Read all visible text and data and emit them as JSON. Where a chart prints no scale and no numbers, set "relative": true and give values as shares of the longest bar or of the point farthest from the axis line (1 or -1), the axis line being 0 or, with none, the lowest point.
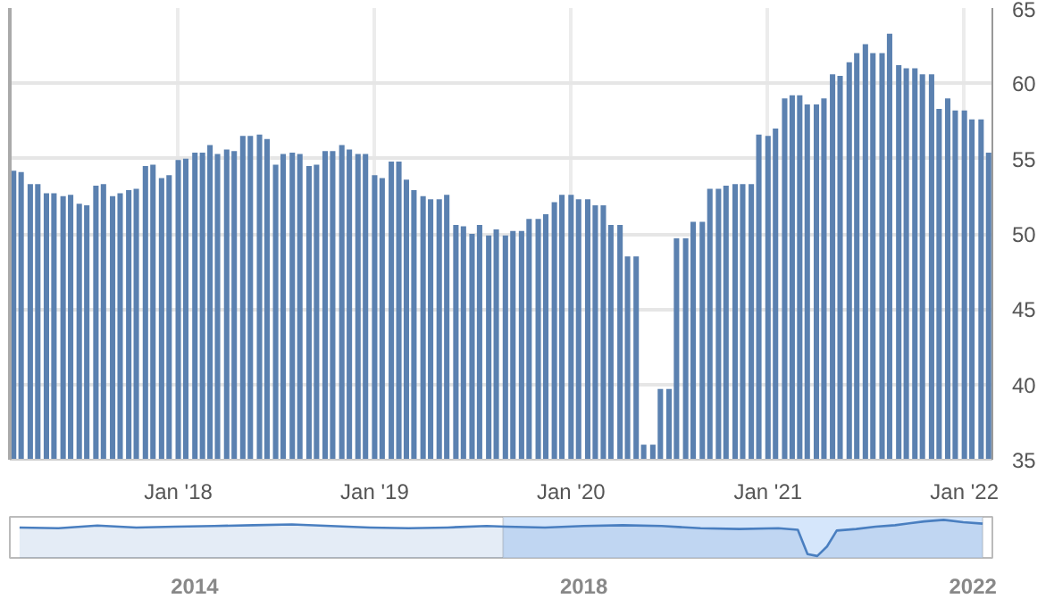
{
  "chart_data": [
    {
      "type": "bar",
      "color": "#5b81b0",
      "x": [
        "2017-03-01",
        "2017-03-15",
        "2017-04-01",
        "2017-04-15",
        "2017-05-01",
        "2017-05-15",
        "2017-06-01",
        "2017-06-15",
        "2017-07-01",
        "2017-07-15",
        "2017-08-01",
        "2017-08-15",
        "2017-09-01",
        "2017-09-15",
        "2017-10-01",
        "2017-10-15",
        "2017-11-01",
        "2017-11-15",
        "2017-12-01",
        "2017-12-15",
        "2018-01-01",
        "2018-01-15",
        "2018-02-01",
        "2018-02-15",
        "2018-03-01",
        "2018-03-15",
        "2018-04-01",
        "2018-04-15",
        "2018-05-01",
        "2018-05-15",
        "2018-06-01",
        "2018-06-15",
        "2018-07-01",
        "2018-07-15",
        "2018-08-01",
        "2018-08-15",
        "2018-09-01",
        "2018-09-15",
        "2018-10-01",
        "2018-10-15",
        "2018-11-01",
        "2018-11-15",
        "2018-12-01",
        "2018-12-15",
        "2019-01-01",
        "2019-01-15",
        "2019-02-01",
        "2019-02-15",
        "2019-03-01",
        "2019-03-15",
        "2019-04-01",
        "2019-04-15",
        "2019-05-01",
        "2019-05-15",
        "2019-06-01",
        "2019-06-15",
        "2019-07-01",
        "2019-07-15",
        "2019-08-01",
        "2019-08-15",
        "2019-09-01",
        "2019-09-15",
        "2019-10-01",
        "2019-10-15",
        "2019-11-01",
        "2019-11-15",
        "2019-12-01",
        "2019-12-15",
        "2020-01-01",
        "2020-01-15",
        "2020-02-01",
        "2020-02-15",
        "2020-03-01",
        "2020-03-15",
        "2020-04-01",
        "2020-04-15",
        "2020-05-01",
        "2020-05-15",
        "2020-06-01",
        "2020-06-15",
        "2020-07-01",
        "2020-07-15",
        "2020-08-01",
        "2020-08-15",
        "2020-09-01",
        "2020-09-15",
        "2020-10-01",
        "2020-10-15",
        "2020-11-01",
        "2020-11-15",
        "2020-12-01",
        "2020-12-15",
        "2021-01-01",
        "2021-01-15",
        "2021-02-01",
        "2021-02-15",
        "2021-03-01",
        "2021-03-15",
        "2021-04-01",
        "2021-04-15",
        "2021-05-01",
        "2021-05-15",
        "2021-06-01",
        "2021-06-15",
        "2021-07-01",
        "2021-07-15",
        "2021-08-01",
        "2021-08-15",
        "2021-09-01",
        "2021-09-15",
        "2021-10-01",
        "2021-10-15",
        "2021-11-01",
        "2021-11-15",
        "2021-12-01",
        "2021-12-15",
        "2022-01-01",
        "2022-01-15",
        "2022-02-01",
        "2022-02-15"
      ],
      "values": [
        54.2,
        54.1,
        53.3,
        53.3,
        52.7,
        52.7,
        52.5,
        52.6,
        52.0,
        51.9,
        53.2,
        53.3,
        52.5,
        52.7,
        52.9,
        53.0,
        54.5,
        54.6,
        53.7,
        53.9,
        54.9,
        55.0,
        55.4,
        55.4,
        55.9,
        55.3,
        55.6,
        55.5,
        56.5,
        56.5,
        56.6,
        56.3,
        54.6,
        55.3,
        55.4,
        55.3,
        54.5,
        54.6,
        55.5,
        55.5,
        55.9,
        55.6,
        55.3,
        55.3,
        53.9,
        53.7,
        54.8,
        54.8,
        53.6,
        52.9,
        52.5,
        52.3,
        52.3,
        52.6,
        50.6,
        50.5,
        50.0,
        50.6,
        49.9,
        50.3,
        49.9,
        50.2,
        50.2,
        51.0,
        51.0,
        51.3,
        52.1,
        52.6,
        52.6,
        52.3,
        52.3,
        51.9,
        51.9,
        50.6,
        50.6,
        48.5,
        48.5,
        36.0,
        36.0,
        39.7,
        39.7,
        49.7,
        49.7,
        50.8,
        50.8,
        53.0,
        53.0,
        53.2,
        53.3,
        53.3,
        53.3,
        56.6,
        56.5,
        57.0,
        59.0,
        59.2,
        59.2,
        58.6,
        58.6,
        59.0,
        60.6,
        60.5,
        61.4,
        62.0,
        62.6,
        62.0,
        62.0,
        63.3,
        61.2,
        61.0,
        61.0,
        60.6,
        60.6,
        58.3,
        59.0,
        58.2,
        58.2,
        57.6,
        57.6,
        55.4
      ],
      "xlim": [
        "2017-02-22",
        "2022-02-22"
      ],
      "xticks": [
        {
          "value": "2018-01-01",
          "label": "Jan '18"
        },
        {
          "value": "2019-01-01",
          "label": "Jan '19"
        },
        {
          "value": "2020-01-01",
          "label": "Jan '20"
        },
        {
          "value": "2021-01-01",
          "label": "Jan '21"
        },
        {
          "value": "2022-01-01",
          "label": "Jan '22"
        }
      ],
      "ylim": [
        35,
        65
      ],
      "yticks": [
        35,
        40,
        45,
        50,
        55,
        60,
        65
      ],
      "grid": true
    },
    {
      "type": "area",
      "relative": true,
      "color": "#4a7fc0",
      "x": [
        2012.2,
        2012.6,
        2013.0,
        2013.4,
        2013.8,
        2014.2,
        2014.6,
        2015.0,
        2015.4,
        2015.8,
        2016.2,
        2016.6,
        2017.0,
        2017.2,
        2017.6,
        2018.0,
        2018.4,
        2018.8,
        2019.2,
        2019.6,
        2020.0,
        2020.2,
        2020.3,
        2020.4,
        2020.5,
        2020.6,
        2020.8,
        2021.0,
        2021.2,
        2021.5,
        2021.7,
        2021.9,
        2022.1
      ],
      "values": [
        0.8,
        0.78,
        0.85,
        0.8,
        0.82,
        0.84,
        0.86,
        0.88,
        0.84,
        0.8,
        0.78,
        0.8,
        0.84,
        0.82,
        0.8,
        0.84,
        0.86,
        0.84,
        0.78,
        0.76,
        0.78,
        0.74,
        0.1,
        0.05,
        0.3,
        0.72,
        0.76,
        0.82,
        0.86,
        0.96,
        1.0,
        0.94,
        0.9
      ],
      "xlim": [
        2012.1,
        2022.2
      ],
      "xticks": [
        2014,
        2018,
        2022
      ],
      "bands": [
        {
          "axis": "x",
          "from": 2017.17,
          "to": 2022.1,
          "color": "#d5e6fb"
        }
      ]
    }
  ]
}
